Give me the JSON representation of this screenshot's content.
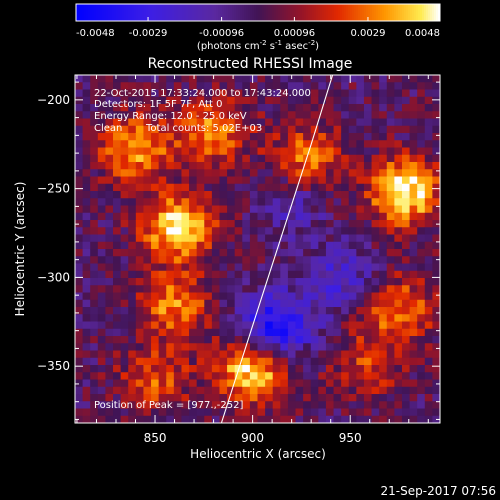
{
  "colorbar": {
    "min": -0.0048,
    "max": 0.0048,
    "ticks": [
      "-0.0048",
      "-0.0029",
      "-0.00096",
      "0.00096",
      "0.0029",
      "0.0048"
    ],
    "units_main": "(photons cm",
    "units_exp1": "-2",
    "units_mid": " s",
    "units_exp2": "-1",
    "units_end": " asec",
    "units_exp3": "-2",
    "units_close": ")"
  },
  "chart_data": {
    "type": "heatmap",
    "title": "Reconstructed RHESSI Image",
    "xlabel": "Heliocentric X (arcsec)",
    "ylabel": "Heliocentric Y (arcsec)",
    "xlim": [
      809,
      996
    ],
    "ylim": [
      -382,
      -186
    ],
    "xticks": [
      850,
      900,
      950
    ],
    "yticks": [
      -200,
      -250,
      -300,
      -350
    ],
    "xtick_labels": [
      "850",
      "900",
      "950"
    ],
    "ytick_labels": [
      "−200",
      "−250",
      "−300",
      "−350"
    ],
    "peak_position": [
      977,
      -252
    ],
    "sources": [
      {
        "x": 862,
        "y": -272,
        "value": 0.0046
      },
      {
        "x": 900,
        "y": -352,
        "value": 0.0046
      },
      {
        "x": 978,
        "y": -252,
        "value": 0.0048
      },
      {
        "x": 840,
        "y": -228,
        "value": 0.0036
      },
      {
        "x": 880,
        "y": -218,
        "value": 0.0031
      },
      {
        "x": 928,
        "y": -232,
        "value": 0.0028
      },
      {
        "x": 860,
        "y": -316,
        "value": 0.0031
      },
      {
        "x": 975,
        "y": -318,
        "value": 0.003
      },
      {
        "x": 850,
        "y": -358,
        "value": 0.0024
      },
      {
        "x": 958,
        "y": -350,
        "value": 0.002
      },
      {
        "x": 912,
        "y": -328,
        "value": -0.0044
      },
      {
        "x": 945,
        "y": -300,
        "value": -0.0022
      },
      {
        "x": 920,
        "y": -260,
        "value": -0.0014
      }
    ],
    "limb_line": [
      [
        884,
        -382
      ],
      [
        905,
        -310
      ],
      [
        930,
        -225
      ],
      [
        941,
        -186
      ]
    ],
    "annotations": {
      "time_range": "22-Oct-2015 17:33:24.000 to 17:43:24.000",
      "detectors": "Detectors: 1F 5F 7F, Att 0",
      "energy": "Energy Range: 12.0 - 25.0 keV",
      "algorithm": "Clean",
      "counts": "Total counts: 5.02E+03",
      "peak": "Position of Peak = [977.,-252]"
    }
  },
  "footer_timestamp": "21-Sep-2017 07:56"
}
